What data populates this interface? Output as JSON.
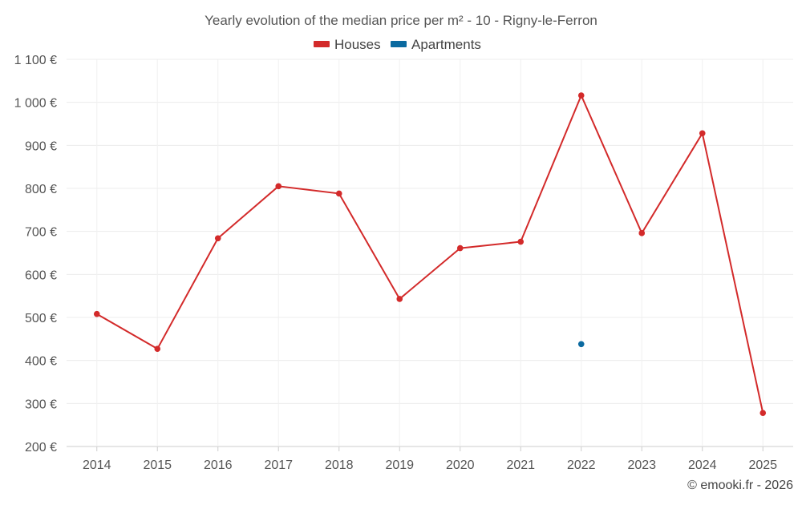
{
  "chart_data": {
    "type": "line",
    "title": "Yearly evolution of the median price per m² - 10 - Rigny-le-Ferron",
    "xlabel": "",
    "ylabel": "",
    "categories": [
      "2014",
      "2015",
      "2016",
      "2017",
      "2018",
      "2019",
      "2020",
      "2021",
      "2022",
      "2023",
      "2024",
      "2025"
    ],
    "ylim": [
      200,
      1100
    ],
    "y_ticks": [
      200,
      300,
      400,
      500,
      600,
      700,
      800,
      900,
      1000,
      1100
    ],
    "y_tick_labels": [
      "200 €",
      "300 €",
      "400 €",
      "500 €",
      "600 €",
      "700 €",
      "800 €",
      "900 €",
      "1 000 €",
      "1 100 €"
    ],
    "grid": true,
    "legend_position": "top-center",
    "series": [
      {
        "name": "Houses",
        "color": "#d32a2a",
        "values": [
          508,
          427,
          684,
          805,
          788,
          543,
          661,
          676,
          1016,
          696,
          928,
          278
        ]
      },
      {
        "name": "Apartments",
        "color": "#0b6aa0",
        "values": [
          null,
          null,
          null,
          null,
          null,
          null,
          null,
          null,
          438,
          null,
          null,
          null
        ]
      }
    ]
  },
  "footer": {
    "credit": "© emooki.fr - 2026"
  }
}
